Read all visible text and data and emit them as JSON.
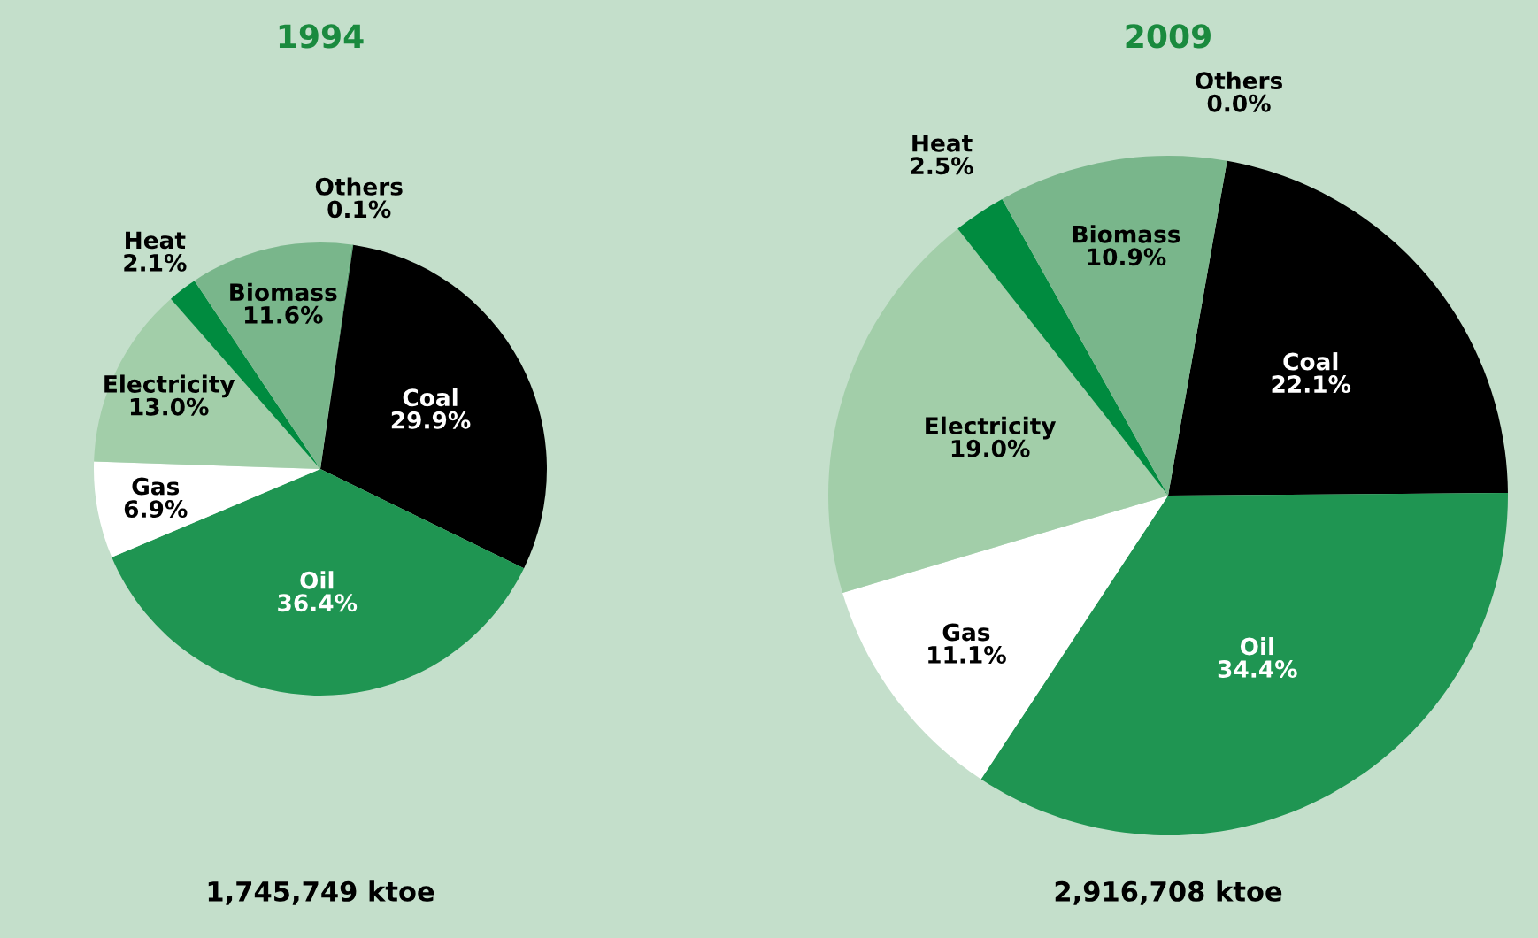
{
  "chart_data": [
    {
      "type": "pie",
      "title": "1994",
      "categories": [
        "Others",
        "Coal",
        "Oil",
        "Gas",
        "Electricity",
        "Heat",
        "Biomass"
      ],
      "values": [
        0.1,
        29.9,
        36.4,
        6.9,
        13.0,
        2.1,
        11.6
      ],
      "colors": [
        "#5fa877",
        "#000000",
        "#1f9552",
        "#ffffff",
        "#a2cea9",
        "#008b3f",
        "#79b68b"
      ],
      "value_labels": [
        "0.1%",
        "29.9%",
        "36.4%",
        "6.9%",
        "13.0%",
        "2.1%",
        "11.6%"
      ],
      "annotations": [
        "1,745,749 ktoe"
      ]
    },
    {
      "type": "pie",
      "title": "2009",
      "categories": [
        "Others",
        "Coal",
        "Oil",
        "Gas",
        "Electricity",
        "Heat",
        "Biomass"
      ],
      "values": [
        0.0,
        22.1,
        34.4,
        11.1,
        19.0,
        2.5,
        10.9
      ],
      "colors": [
        "#5fa877",
        "#000000",
        "#1f9552",
        "#ffffff",
        "#a2cea9",
        "#008b3f",
        "#79b68b"
      ],
      "value_labels": [
        "0.0%",
        "22.1%",
        "34.4%",
        "11.1%",
        "19.0%",
        "2.5%",
        "10.9%"
      ],
      "annotations": [
        "2,916,708 ktoe"
      ]
    }
  ]
}
